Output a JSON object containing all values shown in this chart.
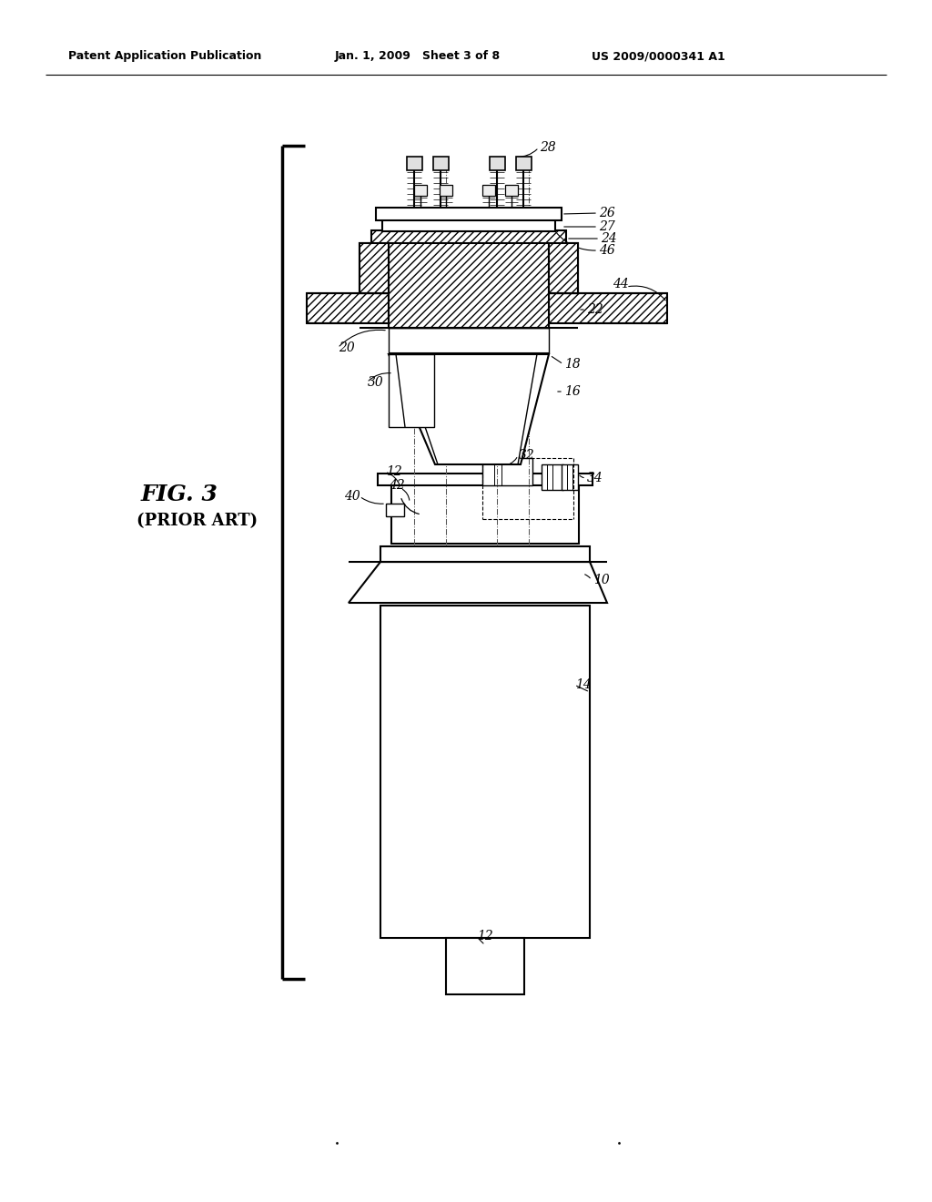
{
  "bg_color": "#ffffff",
  "header_left": "Patent Application Publication",
  "header_mid": "Jan. 1, 2009   Sheet 3 of 8",
  "header_right": "US 2009/0000341 A1",
  "fig_label": "FIG. 3",
  "fig_sublabel": "(PRIOR ART)",
  "lw_thick": 2.0,
  "lw_main": 1.5,
  "lw_thin": 1.0,
  "lw_vthick": 3.0
}
